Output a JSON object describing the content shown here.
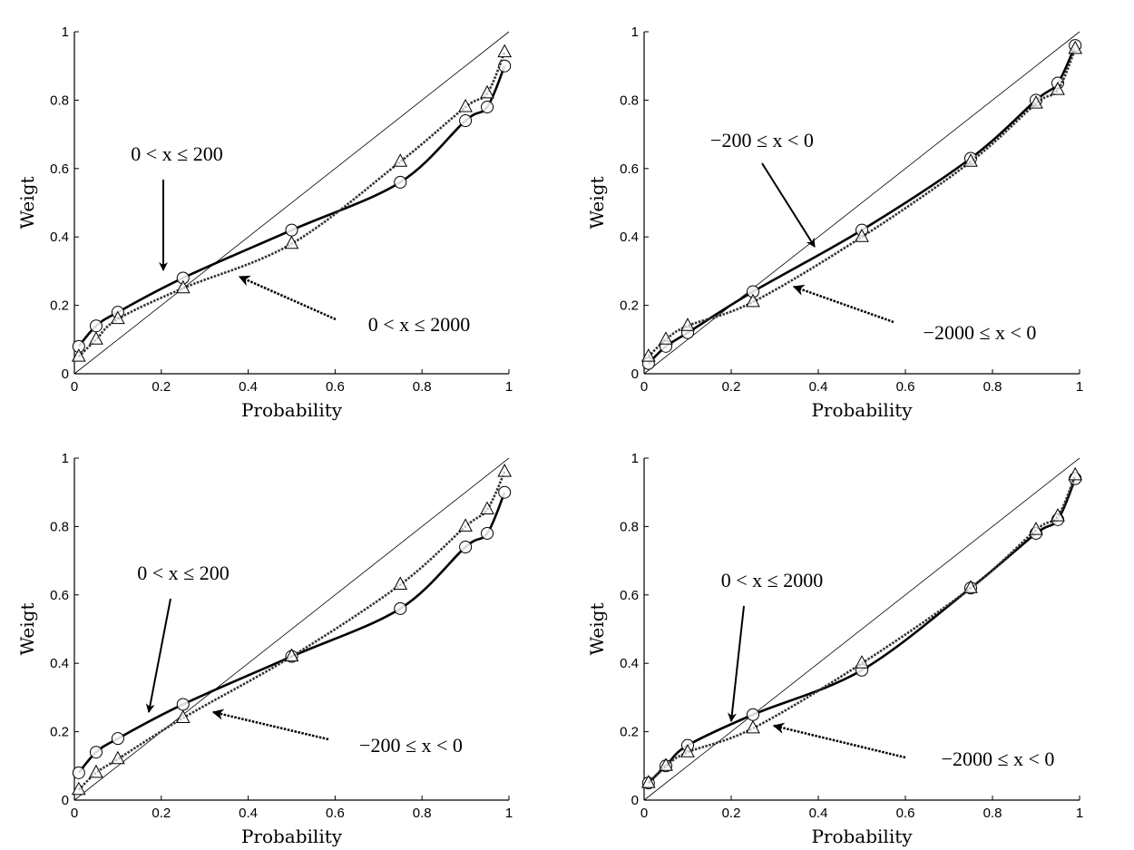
{
  "chart_data": [
    {
      "type": "line",
      "xlabel": "Probability",
      "ylabel": "Weigt",
      "xlim": [
        0,
        1
      ],
      "ylim": [
        0,
        1
      ],
      "xticks": [
        "0",
        "0.2",
        "0.4",
        "0.6",
        "0.8",
        "1"
      ],
      "yticks": [
        "0",
        "0.2",
        "0.4",
        "0.6",
        "0.8",
        "1"
      ],
      "grid": false,
      "reference_line": "diagonal y = x",
      "x": [
        0.01,
        0.05,
        0.1,
        0.25,
        0.5,
        0.75,
        0.9,
        0.95,
        0.99
      ],
      "series": [
        {
          "style": "solid",
          "marker": "circle",
          "values": [
            0.08,
            0.14,
            0.18,
            0.28,
            0.42,
            0.56,
            0.74,
            0.78,
            0.9
          ]
        },
        {
          "style": "dotted",
          "marker": "triangle",
          "values": [
            0.05,
            0.1,
            0.16,
            0.25,
            0.38,
            0.62,
            0.78,
            0.82,
            0.94
          ]
        }
      ],
      "annotations": [
        {
          "text": "0 < x ≤ 200",
          "points_to": "solid"
        },
        {
          "text": "0 < x ≤ 2000",
          "points_to": "dotted"
        }
      ]
    },
    {
      "type": "line",
      "xlabel": "Probability",
      "ylabel": "Weigt",
      "xlim": [
        0,
        1
      ],
      "ylim": [
        0,
        1
      ],
      "xticks": [
        "0",
        "0.2",
        "0.4",
        "0.6",
        "0.8",
        "1"
      ],
      "yticks": [
        "0",
        "0.2",
        "0.4",
        "0.6",
        "0.8",
        "1"
      ],
      "grid": false,
      "reference_line": "diagonal y = x",
      "x": [
        0.01,
        0.05,
        0.1,
        0.25,
        0.5,
        0.75,
        0.9,
        0.95,
        0.99
      ],
      "series": [
        {
          "style": "solid",
          "marker": "circle",
          "values": [
            0.03,
            0.08,
            0.12,
            0.24,
            0.42,
            0.63,
            0.8,
            0.85,
            0.96
          ]
        },
        {
          "style": "dotted",
          "marker": "triangle",
          "values": [
            0.05,
            0.1,
            0.14,
            0.21,
            0.4,
            0.62,
            0.79,
            0.83,
            0.95
          ]
        }
      ],
      "annotations": [
        {
          "text": "−200 ≤ x < 0",
          "points_to": "solid"
        },
        {
          "text": "−2000 ≤ x < 0",
          "points_to": "dotted"
        }
      ]
    },
    {
      "type": "line",
      "xlabel": "Probability",
      "ylabel": "Weigt",
      "xlim": [
        0,
        1
      ],
      "ylim": [
        0,
        1
      ],
      "xticks": [
        "0",
        "0.2",
        "0.4",
        "0.6",
        "0.8",
        "1"
      ],
      "yticks": [
        "0",
        "0.2",
        "0.4",
        "0.6",
        "0.8",
        "1"
      ],
      "grid": false,
      "reference_line": "diagonal y = x",
      "x": [
        0.01,
        0.05,
        0.1,
        0.25,
        0.5,
        0.75,
        0.9,
        0.95,
        0.99
      ],
      "series": [
        {
          "style": "solid",
          "marker": "circle",
          "values": [
            0.08,
            0.14,
            0.18,
            0.28,
            0.42,
            0.56,
            0.74,
            0.78,
            0.9
          ]
        },
        {
          "style": "dotted",
          "marker": "triangle",
          "values": [
            0.03,
            0.08,
            0.12,
            0.24,
            0.42,
            0.63,
            0.8,
            0.85,
            0.96
          ]
        }
      ],
      "annotations": [
        {
          "text": "0 < x ≤ 200",
          "points_to": "solid"
        },
        {
          "text": "−200 ≤ x < 0",
          "points_to": "dotted"
        }
      ]
    },
    {
      "type": "line",
      "xlabel": "Probability",
      "ylabel": "Weigt",
      "xlim": [
        0,
        1
      ],
      "ylim": [
        0,
        1
      ],
      "xticks": [
        "0",
        "0.2",
        "0.4",
        "0.6",
        "0.8",
        "1"
      ],
      "yticks": [
        "0",
        "0.2",
        "0.4",
        "0.6",
        "0.8",
        "1"
      ],
      "grid": false,
      "reference_line": "diagonal y = x",
      "x": [
        0.01,
        0.05,
        0.1,
        0.25,
        0.5,
        0.75,
        0.9,
        0.95,
        0.99
      ],
      "series": [
        {
          "style": "solid",
          "marker": "circle",
          "values": [
            0.05,
            0.1,
            0.16,
            0.25,
            0.38,
            0.62,
            0.78,
            0.82,
            0.94
          ]
        },
        {
          "style": "dotted",
          "marker": "triangle",
          "values": [
            0.05,
            0.1,
            0.14,
            0.21,
            0.4,
            0.62,
            0.79,
            0.83,
            0.95
          ]
        }
      ],
      "annotations": [
        {
          "text": "0 < x ≤ 2000",
          "points_to": "solid"
        },
        {
          "text": "−2000 ≤ x < 0",
          "points_to": "dotted"
        }
      ]
    }
  ]
}
